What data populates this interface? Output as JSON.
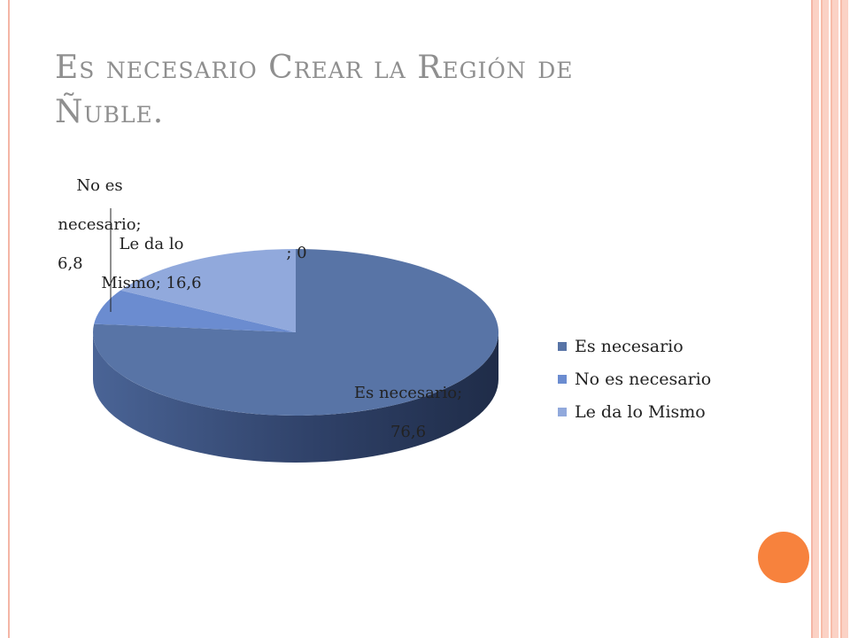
{
  "slide": {
    "title_line1": "Es necesario Crear la Región de",
    "title_line2": "Ñuble."
  },
  "chart_data": {
    "type": "pie",
    "categories": [
      "Es necesario",
      "No es necesario",
      "Le da lo Mismo",
      ""
    ],
    "values": [
      76.6,
      6.8,
      16.6,
      0
    ],
    "colors": [
      "#5874a6",
      "#6b8cd0",
      "#91a9dc",
      "#91a9dc"
    ],
    "data_labels": [
      {
        "line1": "Es necesario;",
        "line2": "76,6"
      },
      {
        "line1": "No es",
        "line2": "necesario;",
        "line3": "6,8"
      },
      {
        "line1": "Le da lo",
        "line2": "Mismo; 16,6"
      },
      {
        "line1": "; 0"
      }
    ],
    "legend": {
      "placement": "right",
      "entries": [
        "Es necesario",
        "No es necesario",
        "Le da lo Mismo"
      ]
    },
    "style": "3d"
  }
}
